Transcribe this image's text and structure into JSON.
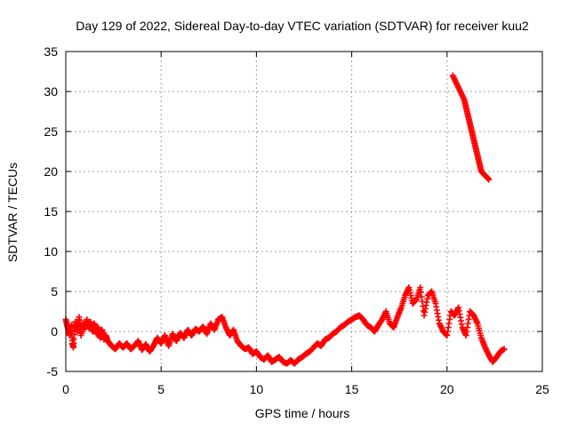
{
  "chart_data": {
    "type": "scatter",
    "title": "Day 129 of 2022, Sidereal Day-to-day VTEC variation (SDTVAR) for receiver kuu2",
    "xlabel": "GPS time / hours",
    "ylabel": "SDTVAR / TECUs",
    "xlim": [
      0,
      25
    ],
    "ylim": [
      -5,
      35
    ],
    "x_ticks": [
      0,
      5,
      10,
      15,
      20,
      25
    ],
    "y_ticks": [
      -5,
      0,
      5,
      10,
      15,
      20,
      25,
      30,
      35
    ],
    "grid": true,
    "marker": "+",
    "series": [
      {
        "name": "SDTVAR",
        "color": "#ff0000",
        "points": [
          [
            0.0,
            1.5
          ],
          [
            0.1,
            0.5
          ],
          [
            0.2,
            -0.5
          ],
          [
            0.3,
            0.8
          ],
          [
            0.35,
            -1.5
          ],
          [
            0.4,
            -2.0
          ],
          [
            0.5,
            1.2
          ],
          [
            0.6,
            0.0
          ],
          [
            0.7,
            1.8
          ],
          [
            0.8,
            -0.5
          ],
          [
            0.9,
            1.0
          ],
          [
            1.0,
            0.3
          ],
          [
            1.1,
            1.5
          ],
          [
            1.2,
            0.5
          ],
          [
            1.3,
            1.2
          ],
          [
            1.4,
            0.0
          ],
          [
            1.5,
            1.0
          ],
          [
            1.6,
            -0.3
          ],
          [
            1.7,
            0.5
          ],
          [
            1.8,
            -0.8
          ],
          [
            1.9,
            0.2
          ],
          [
            2.0,
            -1.0
          ],
          [
            2.1,
            -0.5
          ],
          [
            2.2,
            -1.2
          ],
          [
            2.4,
            -1.8
          ],
          [
            2.6,
            -2.2
          ],
          [
            2.8,
            -1.5
          ],
          [
            3.0,
            -2.0
          ],
          [
            3.2,
            -1.5
          ],
          [
            3.4,
            -2.2
          ],
          [
            3.6,
            -1.8
          ],
          [
            3.8,
            -1.2
          ],
          [
            4.0,
            -2.3
          ],
          [
            4.2,
            -1.6
          ],
          [
            4.4,
            -2.5
          ],
          [
            4.6,
            -1.8
          ],
          [
            4.8,
            -0.8
          ],
          [
            5.0,
            -1.5
          ],
          [
            5.2,
            -0.5
          ],
          [
            5.4,
            -1.8
          ],
          [
            5.6,
            -0.3
          ],
          [
            5.8,
            -1.2
          ],
          [
            6.0,
            -0.2
          ],
          [
            6.2,
            -0.8
          ],
          [
            6.4,
            0.2
          ],
          [
            6.6,
            -0.5
          ],
          [
            6.8,
            0.3
          ],
          [
            7.0,
            0.0
          ],
          [
            7.2,
            0.6
          ],
          [
            7.4,
            -0.3
          ],
          [
            7.6,
            1.0
          ],
          [
            7.8,
            0.2
          ],
          [
            8.0,
            1.5
          ],
          [
            8.2,
            1.8
          ],
          [
            8.4,
            0.5
          ],
          [
            8.6,
            -0.5
          ],
          [
            8.8,
            0.2
          ],
          [
            9.0,
            -1.2
          ],
          [
            9.2,
            -1.8
          ],
          [
            9.4,
            -2.2
          ],
          [
            9.6,
            -2.0
          ],
          [
            9.8,
            -2.8
          ],
          [
            10.0,
            -2.5
          ],
          [
            10.2,
            -3.2
          ],
          [
            10.4,
            -3.5
          ],
          [
            10.6,
            -3.0
          ],
          [
            10.8,
            -3.8
          ],
          [
            11.0,
            -3.5
          ],
          [
            11.2,
            -3.2
          ],
          [
            11.4,
            -3.8
          ],
          [
            11.6,
            -4.0
          ],
          [
            11.8,
            -3.6
          ],
          [
            12.0,
            -4.0
          ],
          [
            12.2,
            -3.5
          ],
          [
            12.4,
            -3.2
          ],
          [
            12.6,
            -2.8
          ],
          [
            12.8,
            -2.5
          ],
          [
            13.0,
            -2.0
          ],
          [
            13.2,
            -1.5
          ],
          [
            13.4,
            -1.8
          ],
          [
            13.6,
            -1.0
          ],
          [
            13.8,
            -0.8
          ],
          [
            14.0,
            -0.3
          ],
          [
            14.2,
            0.0
          ],
          [
            14.4,
            0.5
          ],
          [
            14.6,
            0.8
          ],
          [
            14.8,
            1.2
          ],
          [
            15.0,
            1.5
          ],
          [
            15.2,
            1.8
          ],
          [
            15.4,
            2.0
          ],
          [
            15.6,
            1.5
          ],
          [
            15.8,
            0.8
          ],
          [
            16.0,
            0.5
          ],
          [
            16.2,
            0.0
          ],
          [
            16.4,
            0.8
          ],
          [
            16.6,
            1.5
          ],
          [
            16.8,
            2.5
          ],
          [
            17.0,
            1.0
          ],
          [
            17.2,
            0.5
          ],
          [
            17.4,
            1.8
          ],
          [
            17.6,
            3.0
          ],
          [
            17.8,
            4.5
          ],
          [
            18.0,
            5.5
          ],
          [
            18.2,
            3.5
          ],
          [
            18.4,
            4.0
          ],
          [
            18.6,
            5.5
          ],
          [
            18.8,
            2.0
          ],
          [
            19.0,
            4.5
          ],
          [
            19.2,
            5.0
          ],
          [
            19.4,
            3.5
          ],
          [
            19.6,
            1.0
          ],
          [
            19.8,
            0.0
          ],
          [
            20.0,
            -0.5
          ],
          [
            20.2,
            2.5
          ],
          [
            20.4,
            2.0
          ],
          [
            20.6,
            3.0
          ],
          [
            20.8,
            0.5
          ],
          [
            21.0,
            -0.5
          ],
          [
            21.2,
            2.5
          ],
          [
            21.4,
            2.0
          ],
          [
            21.6,
            1.0
          ],
          [
            21.8,
            -0.8
          ],
          [
            22.0,
            -2.0
          ],
          [
            22.2,
            -3.0
          ],
          [
            22.4,
            -3.8
          ],
          [
            22.6,
            -3.2
          ],
          [
            22.8,
            -2.5
          ],
          [
            23.0,
            -2.2
          ],
          [
            20.3,
            32.0
          ],
          [
            20.5,
            31.0
          ],
          [
            20.7,
            30.0
          ],
          [
            20.9,
            29.0
          ],
          [
            21.0,
            28.0
          ],
          [
            21.1,
            27.0
          ],
          [
            21.2,
            26.0
          ],
          [
            21.3,
            25.0
          ],
          [
            21.4,
            24.0
          ],
          [
            21.5,
            23.0
          ],
          [
            21.6,
            22.0
          ],
          [
            21.7,
            21.0
          ],
          [
            21.8,
            20.0
          ],
          [
            22.0,
            19.5
          ],
          [
            22.2,
            19.0
          ]
        ]
      }
    ]
  }
}
